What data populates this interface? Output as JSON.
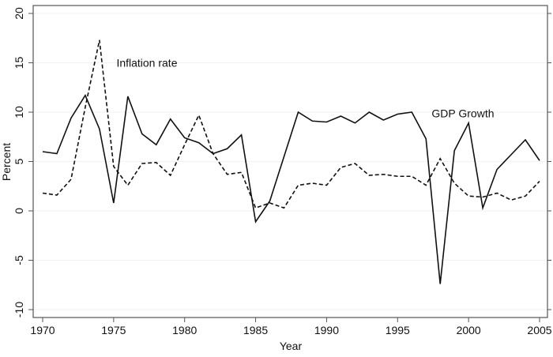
{
  "chart_data": {
    "type": "line",
    "title": "",
    "xlabel": "Year",
    "ylabel": "Percent",
    "xlim": [
      1970,
      2005
    ],
    "ylim": [
      -10,
      20
    ],
    "x_ticks": [
      1970,
      1975,
      1980,
      1985,
      1990,
      1995,
      2000,
      2005
    ],
    "y_ticks": [
      -10,
      -5,
      0,
      5,
      10,
      15,
      20
    ],
    "grid": true,
    "x": [
      1970,
      1971,
      1972,
      1973,
      1974,
      1975,
      1976,
      1977,
      1978,
      1979,
      1980,
      1981,
      1982,
      1983,
      1984,
      1985,
      1986,
      1987,
      1988,
      1989,
      1990,
      1991,
      1992,
      1993,
      1994,
      1995,
      1996,
      1997,
      1998,
      1999,
      2000,
      2001,
      2002,
      2003,
      2004,
      2005
    ],
    "series": [
      {
        "name": "GDP Growth",
        "style": "solid",
        "values": [
          6.0,
          5.8,
          9.4,
          11.7,
          8.3,
          0.8,
          11.6,
          7.8,
          6.7,
          9.3,
          7.4,
          6.9,
          5.8,
          6.3,
          7.7,
          -1.1,
          1.0,
          5.5,
          10.0,
          9.1,
          9.0,
          9.6,
          8.9,
          10.0,
          9.2,
          9.8,
          10.0,
          7.3,
          -7.4,
          6.1,
          8.9,
          0.3,
          4.2,
          5.7,
          7.2,
          5.1
        ]
      },
      {
        "name": "Inflation rate",
        "style": "dashed",
        "values": [
          1.8,
          1.6,
          3.2,
          10.5,
          17.3,
          4.5,
          2.6,
          4.8,
          4.9,
          3.6,
          6.7,
          9.7,
          5.8,
          3.7,
          3.9,
          0.3,
          0.8,
          0.3,
          2.6,
          2.8,
          2.6,
          4.4,
          4.8,
          3.6,
          3.7,
          3.5,
          3.5,
          2.6,
          5.3,
          2.8,
          1.5,
          1.4,
          1.8,
          1.1,
          1.5,
          3.0
        ]
      }
    ],
    "annotations": [
      {
        "text": "Inflation rate",
        "x": 1975.2,
        "y": 15
      },
      {
        "text": "GDP Growth",
        "x": 1997.4,
        "y": 9.9
      }
    ]
  }
}
